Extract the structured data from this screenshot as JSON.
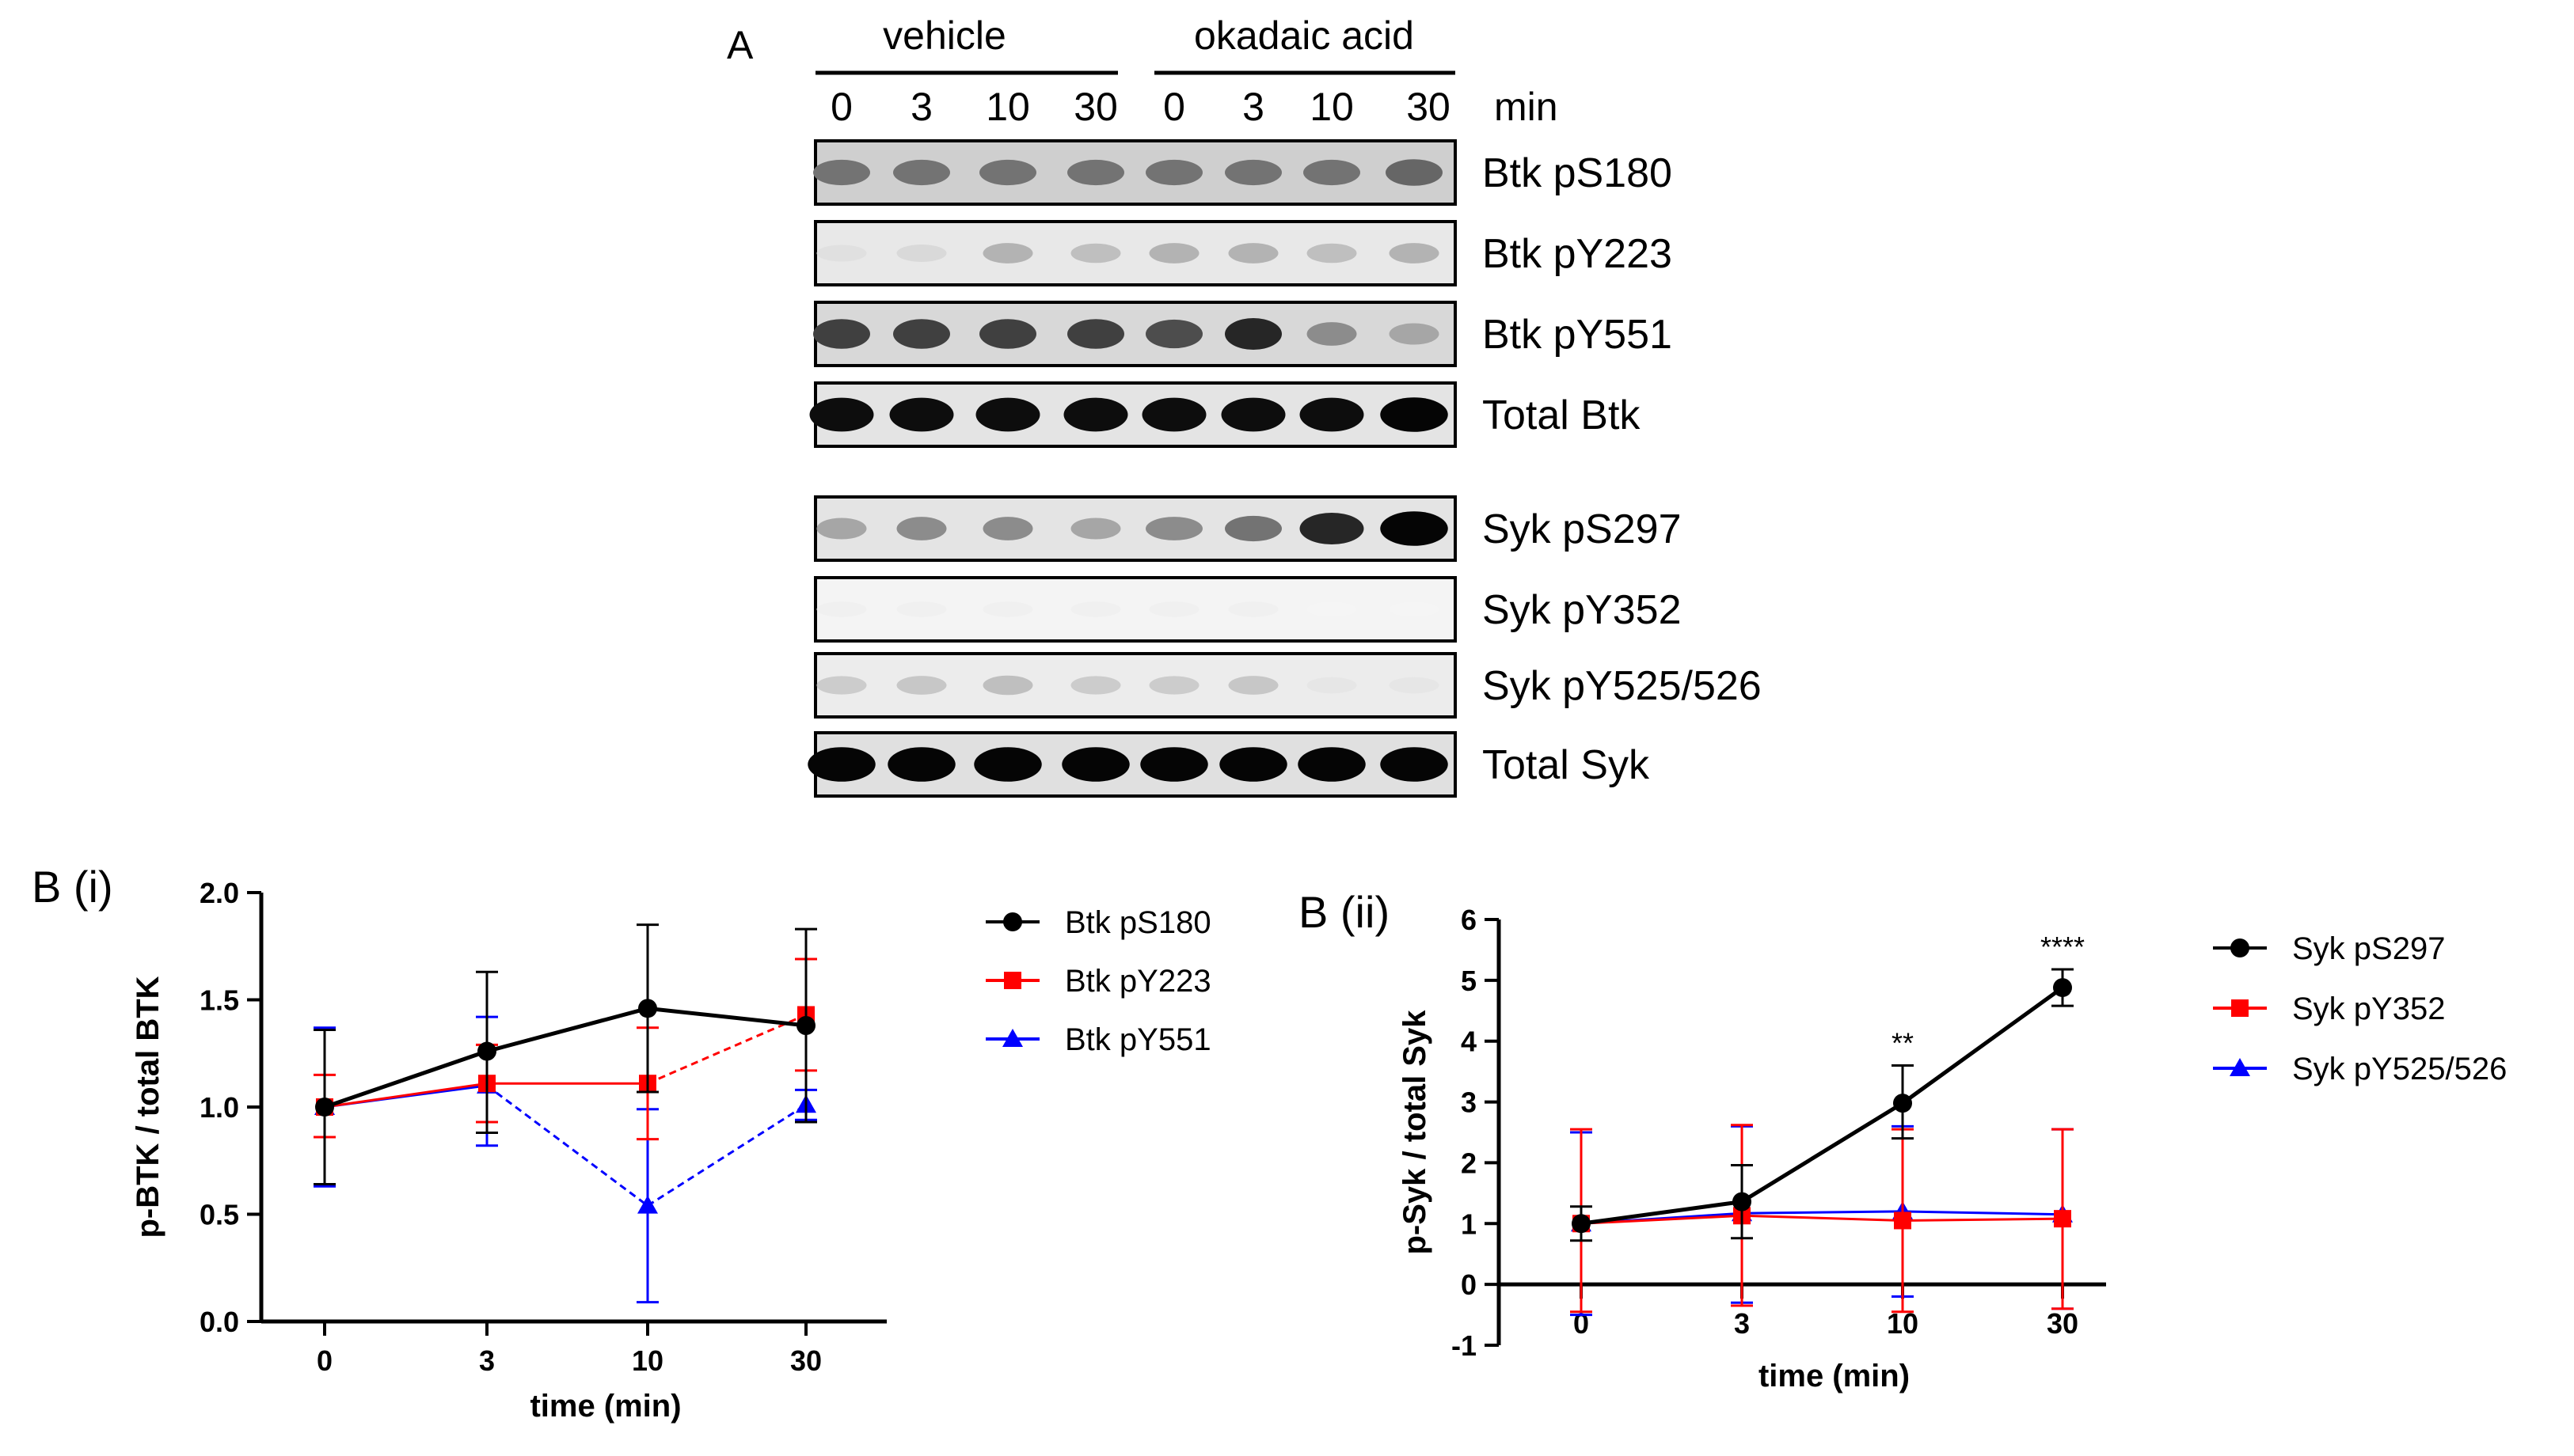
{
  "panel_a": {
    "label": "A",
    "group_labels": [
      "vehicle",
      "okadaic acid"
    ],
    "lane_labels": [
      "0",
      "3",
      "10",
      "30",
      "0",
      "3",
      "10",
      "30"
    ],
    "unit_label": "min",
    "blots": [
      {
        "label": "Btk pS180",
        "band_darkness": [
          0.55,
          0.55,
          0.55,
          0.55,
          0.55,
          0.55,
          0.55,
          0.6
        ],
        "band_width": [
          0.8,
          0.8,
          0.8,
          0.8,
          0.8,
          0.8,
          0.8,
          0.8
        ],
        "lane_bg": "#cfcfcf"
      },
      {
        "label": "Btk pY223",
        "band_darkness": [
          0.12,
          0.15,
          0.3,
          0.25,
          0.3,
          0.3,
          0.25,
          0.3
        ],
        "band_width": [
          0.7,
          0.7,
          0.7,
          0.7,
          0.7,
          0.7,
          0.7,
          0.7
        ],
        "lane_bg": "#e8e8e8"
      },
      {
        "label": "Btk pY551",
        "band_darkness": [
          0.75,
          0.75,
          0.75,
          0.75,
          0.7,
          0.85,
          0.45,
          0.35
        ],
        "band_width": [
          0.8,
          0.8,
          0.8,
          0.8,
          0.8,
          0.8,
          0.7,
          0.7
        ],
        "lane_bg": "#d8d8d8"
      },
      {
        "label": "Total Btk",
        "band_darkness": [
          0.95,
          0.95,
          0.95,
          0.95,
          0.95,
          0.95,
          0.95,
          0.98
        ],
        "band_width": [
          0.9,
          0.9,
          0.9,
          0.9,
          0.9,
          0.9,
          0.9,
          0.95
        ],
        "lane_bg": "#e4e4e4"
      },
      {
        "label": "Syk pS297",
        "band_darkness": [
          0.35,
          0.45,
          0.45,
          0.35,
          0.45,
          0.55,
          0.85,
          0.98
        ],
        "band_width": [
          0.7,
          0.7,
          0.7,
          0.7,
          0.8,
          0.8,
          0.9,
          0.95
        ],
        "lane_bg": "#e4e4e4"
      },
      {
        "label": "Syk pY352",
        "band_darkness": [
          0.06,
          0.06,
          0.06,
          0.06,
          0.06,
          0.06,
          0.04,
          0.04
        ],
        "band_width": [
          0.7,
          0.7,
          0.7,
          0.7,
          0.7,
          0.7,
          0.7,
          0.7
        ],
        "lane_bg": "#f4f4f4"
      },
      {
        "label": "Syk pY525/526",
        "band_darkness": [
          0.2,
          0.22,
          0.25,
          0.2,
          0.2,
          0.22,
          0.1,
          0.1
        ],
        "band_width": [
          0.7,
          0.7,
          0.7,
          0.7,
          0.7,
          0.7,
          0.7,
          0.7
        ],
        "lane_bg": "#ececec"
      },
      {
        "label": "Total Syk",
        "band_darkness": [
          0.98,
          0.98,
          0.98,
          0.98,
          0.98,
          0.98,
          0.98,
          0.98
        ],
        "band_width": [
          0.95,
          0.95,
          0.95,
          0.95,
          0.95,
          0.95,
          0.95,
          0.95
        ],
        "lane_bg": "#e0e0e0"
      }
    ]
  },
  "chart_data": [
    {
      "panel_label": "B (i)",
      "type": "line",
      "categories": [
        "0",
        "3",
        "10",
        "30"
      ],
      "xlabel": "time (min)",
      "ylabel": "p-BTK / total BTK",
      "ylim": [
        0.0,
        2.0
      ],
      "yticks": [
        "0.0",
        "0.5",
        "1.0",
        "1.5",
        "2.0"
      ],
      "series": [
        {
          "name": "Btk pS180",
          "color": "#000000",
          "marker": "circle",
          "dashed": false,
          "values": [
            1.0,
            1.26,
            1.46,
            1.38
          ],
          "error_low": [
            0.64,
            0.88,
            1.07,
            0.93
          ],
          "error_high": [
            1.36,
            1.63,
            1.85,
            1.83
          ]
        },
        {
          "name": "Btk pY223",
          "color": "#ff0000",
          "marker": "square",
          "dashed": true,
          "dash_segments": [
            2
          ],
          "values": [
            1.0,
            1.11,
            1.11,
            1.43
          ],
          "error_low": [
            0.86,
            0.93,
            0.85,
            1.17
          ],
          "error_high": [
            1.15,
            1.29,
            1.37,
            1.69
          ]
        },
        {
          "name": "Btk pY551",
          "color": "#0000ff",
          "marker": "triangle",
          "dashed": true,
          "dash_segments": [
            1,
            2
          ],
          "values": [
            1.0,
            1.1,
            0.54,
            1.01
          ],
          "error_low": [
            0.63,
            0.82,
            0.09,
            0.94
          ],
          "error_high": [
            1.37,
            1.42,
            0.99,
            1.08
          ]
        }
      ],
      "legend_position": "right"
    },
    {
      "panel_label": "B (ii)",
      "type": "line",
      "categories": [
        "0",
        "3",
        "10",
        "30"
      ],
      "xlabel": "time (min)",
      "ylabel": "p-Syk / total Syk",
      "ylim": [
        -1,
        6
      ],
      "yticks": [
        "-1",
        "0",
        "1",
        "2",
        "3",
        "4",
        "5",
        "6"
      ],
      "series": [
        {
          "name": "Syk pS297",
          "color": "#000000",
          "marker": "circle",
          "dashed": false,
          "values": [
            1.0,
            1.36,
            2.98,
            4.88
          ],
          "error_low": [
            0.72,
            0.76,
            2.4,
            4.58
          ],
          "error_high": [
            1.28,
            1.96,
            3.6,
            5.18
          ]
        },
        {
          "name": "Syk pY352",
          "color": "#ff0000",
          "marker": "square",
          "dashed": false,
          "values": [
            1.0,
            1.13,
            1.05,
            1.08
          ],
          "error_low": [
            -0.45,
            -0.35,
            -0.45,
            -0.4
          ],
          "error_high": [
            2.55,
            2.62,
            2.55,
            2.55
          ]
        },
        {
          "name": "Syk pY525/526",
          "color": "#0000ff",
          "marker": "triangle",
          "dashed": false,
          "values": [
            1.0,
            1.17,
            1.2,
            1.15
          ],
          "error_low": [
            -0.5,
            -0.3,
            -0.2,
            -0.4
          ],
          "error_high": [
            2.5,
            2.6,
            2.6,
            2.55
          ]
        }
      ],
      "annotations": [
        {
          "category": "10",
          "text": "**"
        },
        {
          "category": "30",
          "text": "****"
        }
      ],
      "legend_position": "right"
    }
  ]
}
